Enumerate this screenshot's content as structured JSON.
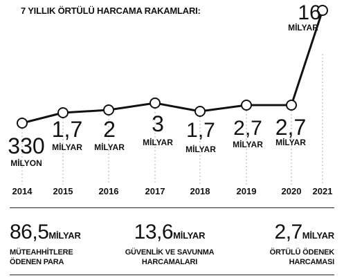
{
  "chart_data": {
    "type": "line",
    "title": "7 YILLIK ÖRTÜLÜ HARCAMA RAKAMLARI:",
    "categories": [
      "2014",
      "2015",
      "2016",
      "2017",
      "2018",
      "2019",
      "2020",
      "2021"
    ],
    "values": [
      0.33,
      1.7,
      2,
      3,
      1.7,
      2.7,
      2.7,
      16
    ],
    "value_labels": [
      {
        "num": "330",
        "unit": "MİLYON"
      },
      {
        "num": "1,7",
        "unit": "MİLYAR"
      },
      {
        "num": "2",
        "unit": "MİLYAR"
      },
      {
        "num": "3",
        "unit": "MİLYAR"
      },
      {
        "num": "1,7",
        "unit": "MİLYAR"
      },
      {
        "num": "2,7",
        "unit": "MİLYAR"
      },
      {
        "num": "2,7",
        "unit": "MİLYAR"
      },
      {
        "num": "16",
        "unit": "MİLYAR"
      }
    ],
    "grid": false,
    "line_color": "#111111",
    "marker_fill": "#ffffff",
    "leader_color": "#bbbbbb"
  },
  "stats": [
    {
      "value": "86,5",
      "unit": "MİLYAR",
      "label_lines": [
        "MÜTEAHHİTLERE",
        "ÖDENEN PARA"
      ]
    },
    {
      "value": "13,6",
      "unit": "MİLYAR",
      "label_lines": [
        "GÜVENLİK VE SAVUNMA",
        "HARCAMALARI"
      ]
    },
    {
      "value": "2,7",
      "unit": "MİLYAR",
      "label_lines": [
        "ÖRTÜLÜ ÖDENEK",
        "HARCAMASI"
      ]
    }
  ]
}
